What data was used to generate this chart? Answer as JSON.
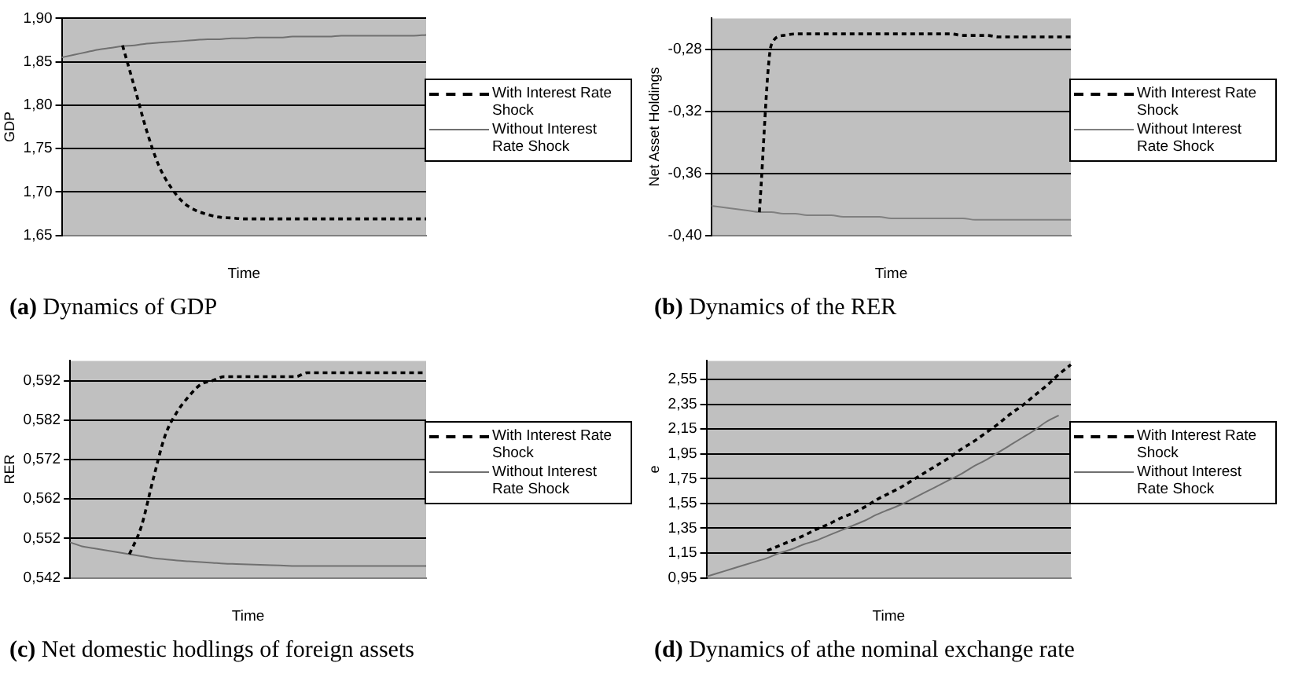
{
  "chart_data": [
    {
      "type": "line",
      "title": "(a) Dynamics of GDP",
      "xlabel": "Time",
      "ylabel": "GDP",
      "grid": "y",
      "legend": "right",
      "marker": "none",
      "categories": [
        null,
        null,
        null,
        null,
        null,
        null,
        null,
        null,
        null,
        null,
        null,
        null,
        null,
        null,
        null,
        null,
        null,
        null,
        null,
        null,
        null,
        null,
        null,
        null,
        null,
        null,
        null,
        null,
        null,
        null,
        null
      ],
      "ylim": [
        1.65,
        1.9
      ],
      "yticks": [
        {
          "value": 1.65,
          "label": "1,65"
        },
        {
          "value": 1.7,
          "label": "1,70"
        },
        {
          "value": 1.75,
          "label": "1,75"
        },
        {
          "value": 1.8,
          "label": "1,80"
        },
        {
          "value": 1.85,
          "label": "1,85"
        },
        {
          "value": 1.9,
          "label": "1,90"
        }
      ],
      "series": [
        {
          "name": "With Interest Rate Shock",
          "color": "#000000",
          "line_style": "dashed",
          "values": [
            null,
            null,
            null,
            null,
            null,
            1.869,
            1.82,
            1.77,
            1.73,
            1.705,
            1.688,
            1.679,
            1.674,
            1.671,
            1.67,
            1.669,
            1.669,
            1.669,
            1.669,
            1.669,
            1.669,
            1.669,
            1.669,
            1.669,
            1.669,
            1.669,
            1.669,
            1.669,
            1.669,
            1.669,
            1.669
          ]
        },
        {
          "name": "Without Interest Rate Shock",
          "color": "#707070",
          "line_style": "solid",
          "values": [
            1.855,
            1.858,
            1.861,
            1.864,
            1.866,
            1.868,
            1.869,
            1.871,
            1.872,
            1.873,
            1.874,
            1.875,
            1.876,
            1.876,
            1.877,
            1.877,
            1.878,
            1.878,
            1.878,
            1.879,
            1.879,
            1.879,
            1.879,
            1.88,
            1.88,
            1.88,
            1.88,
            1.88,
            1.88,
            1.88,
            1.881
          ]
        }
      ]
    },
    {
      "type": "line",
      "title": "(b) Dynamics of the RER",
      "xlabel": "Time",
      "ylabel": "Net Asset Holdings",
      "grid": "y",
      "legend": "right",
      "marker": "none",
      "categories": [
        null,
        null,
        null,
        null,
        null,
        null,
        null,
        null,
        null,
        null,
        null,
        null,
        null,
        null,
        null,
        null,
        null,
        null,
        null,
        null,
        null,
        null,
        null,
        null,
        null,
        null,
        null,
        null,
        null,
        null,
        null
      ],
      "ylim": [
        -0.4,
        -0.26
      ],
      "yticks": [
        {
          "value": -0.4,
          "label": "-0,40"
        },
        {
          "value": -0.36,
          "label": "-0,36"
        },
        {
          "value": -0.32,
          "label": "-0,32"
        },
        {
          "value": -0.28,
          "label": "-0,28"
        }
      ],
      "series": [
        {
          "name": "With Interest Rate Shock",
          "color": "#000000",
          "line_style": "dashed",
          "values": [
            null,
            null,
            null,
            null,
            -0.385,
            -0.277,
            -0.271,
            -0.27,
            -0.27,
            -0.27,
            -0.27,
            -0.27,
            -0.27,
            -0.27,
            -0.27,
            -0.27,
            -0.27,
            -0.27,
            -0.27,
            -0.27,
            -0.27,
            -0.271,
            -0.271,
            -0.271,
            -0.272,
            -0.272,
            -0.272,
            -0.272,
            -0.272,
            -0.272,
            -0.272
          ]
        },
        {
          "name": "Without Interest Rate Shock",
          "color": "#808080",
          "line_style": "solid",
          "values": [
            -0.381,
            -0.382,
            -0.383,
            -0.384,
            -0.385,
            -0.385,
            -0.386,
            -0.386,
            -0.387,
            -0.387,
            -0.387,
            -0.388,
            -0.388,
            -0.388,
            -0.388,
            -0.389,
            -0.389,
            -0.389,
            -0.389,
            -0.389,
            -0.389,
            -0.389,
            -0.39,
            -0.39,
            -0.39,
            -0.39,
            -0.39,
            -0.39,
            -0.39,
            -0.39,
            -0.39
          ]
        }
      ]
    },
    {
      "type": "line",
      "title": "(c) Net domestic hodlings of foreign assets",
      "xlabel": "Time",
      "ylabel": "RER",
      "grid": "y",
      "legend": "right",
      "marker": "none",
      "categories": [
        null,
        null,
        null,
        null,
        null,
        null,
        null,
        null,
        null,
        null,
        null,
        null,
        null,
        null,
        null,
        null,
        null,
        null,
        null,
        null,
        null,
        null,
        null,
        null,
        null,
        null,
        null,
        null,
        null,
        null,
        null
      ],
      "ylim": [
        0.542,
        0.597
      ],
      "yticks": [
        {
          "value": 0.542,
          "label": "0,542"
        },
        {
          "value": 0.552,
          "label": "0,552"
        },
        {
          "value": 0.562,
          "label": "0,562"
        },
        {
          "value": 0.572,
          "label": "0,572"
        },
        {
          "value": 0.582,
          "label": "0,582"
        },
        {
          "value": 0.592,
          "label": "0,592"
        }
      ],
      "series": [
        {
          "name": "With Interest Rate Shock",
          "color": "#000000",
          "line_style": "dashed",
          "values": [
            null,
            null,
            null,
            null,
            null,
            0.548,
            0.555,
            0.567,
            0.578,
            0.584,
            0.588,
            0.591,
            0.592,
            0.593,
            0.593,
            0.593,
            0.593,
            0.593,
            0.593,
            0.593,
            0.594,
            0.594,
            0.594,
            0.594,
            0.594,
            0.594,
            0.594,
            0.594,
            0.594,
            0.594,
            0.594
          ]
        },
        {
          "name": "Without Interest Rate Shock",
          "color": "#707070",
          "line_style": "solid",
          "values": [
            0.551,
            0.55,
            0.5495,
            0.549,
            0.5485,
            0.548,
            0.5475,
            0.547,
            0.5467,
            0.5464,
            0.5462,
            0.546,
            0.5458,
            0.5456,
            0.5455,
            0.5454,
            0.5453,
            0.5452,
            0.5451,
            0.545,
            0.545,
            0.545,
            0.545,
            0.545,
            0.545,
            0.545,
            0.545,
            0.545,
            0.545,
            0.545,
            0.545
          ]
        }
      ]
    },
    {
      "type": "line",
      "title": "(d) Dynamics of athe nominal exchange rate",
      "xlabel": "Time",
      "ylabel": "e",
      "grid": "y",
      "legend": "right",
      "marker": "none",
      "categories": [
        null,
        null,
        null,
        null,
        null,
        null,
        null,
        null,
        null,
        null,
        null,
        null,
        null,
        null,
        null,
        null,
        null,
        null,
        null,
        null,
        null,
        null,
        null,
        null,
        null,
        null,
        null,
        null,
        null,
        null,
        null
      ],
      "ylim": [
        0.95,
        2.7
      ],
      "yticks": [
        {
          "value": 0.95,
          "label": "0,95"
        },
        {
          "value": 1.15,
          "label": "1,15"
        },
        {
          "value": 1.35,
          "label": "1,35"
        },
        {
          "value": 1.55,
          "label": "1,55"
        },
        {
          "value": 1.75,
          "label": "1,75"
        },
        {
          "value": 1.95,
          "label": "1,95"
        },
        {
          "value": 2.15,
          "label": "2,15"
        },
        {
          "value": 2.35,
          "label": "2,35"
        },
        {
          "value": 2.55,
          "label": "2,55"
        }
      ],
      "series": [
        {
          "name": "With Interest Rate Shock",
          "color": "#000000",
          "line_style": "dashed",
          "values": [
            null,
            null,
            null,
            null,
            null,
            1.17,
            1.21,
            1.25,
            1.29,
            1.34,
            1.38,
            1.43,
            1.47,
            1.52,
            1.58,
            1.63,
            1.68,
            1.74,
            1.8,
            1.86,
            1.92,
            1.99,
            2.05,
            2.12,
            2.19,
            2.27,
            2.34,
            2.42,
            2.5,
            2.59,
            2.67
          ]
        },
        {
          "name": "Without Interest Rate Shock",
          "color": "#707070",
          "line_style": "solid",
          "values": [
            0.96,
            0.99,
            1.02,
            1.05,
            1.08,
            1.11,
            1.15,
            1.18,
            1.22,
            1.25,
            1.29,
            1.33,
            1.37,
            1.41,
            1.46,
            1.5,
            1.54,
            1.59,
            1.64,
            1.69,
            1.74,
            1.79,
            1.85,
            1.9,
            1.96,
            2.02,
            2.08,
            2.14,
            2.21,
            2.26,
            null
          ]
        }
      ]
    }
  ]
}
